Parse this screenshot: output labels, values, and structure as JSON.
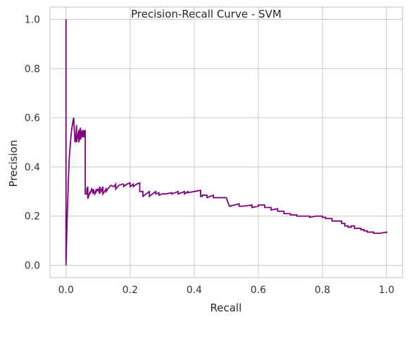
{
  "chart_data": {
    "type": "line",
    "title": "Precision-Recall Curve - SVM",
    "xlabel": "Recall",
    "ylabel": "Precision",
    "xlim": [
      -0.05,
      1.05
    ],
    "ylim": [
      -0.05,
      1.05
    ],
    "xticks": [
      "0.0",
      "0.2",
      "0.4",
      "0.6",
      "0.8",
      "1.0"
    ],
    "yticks": [
      "0.0",
      "0.2",
      "0.4",
      "0.6",
      "0.8",
      "1.0"
    ],
    "grid": true,
    "series": [
      {
        "color": "#800080",
        "x": [
          0,
          0,
          0,
          0.003,
          0.007,
          0.01,
          0.014,
          0.017,
          0.021,
          0.024,
          0.028,
          0.031,
          0.033,
          0.033,
          0.04,
          0.04,
          0.045,
          0.045,
          0.05,
          0.05,
          0.055,
          0.055,
          0.06,
          0.06,
          0.065,
          0.065,
          0.068,
          0.068,
          0.075,
          0.075,
          0.08,
          0.085,
          0.085,
          0.09,
          0.095,
          0.095,
          0.1,
          0.105,
          0.105,
          0.11,
          0.115,
          0.115,
          0.12,
          0.125,
          0.125,
          0.13,
          0.14,
          0.15,
          0.155,
          0.155,
          0.165,
          0.175,
          0.18,
          0.18,
          0.19,
          0.2,
          0.2,
          0.21,
          0.21,
          0.22,
          0.23,
          0.23,
          0.24,
          0.24,
          0.25,
          0.26,
          0.26,
          0.27,
          0.28,
          0.28,
          0.29,
          0.29,
          0.3,
          0.3,
          0.31,
          0.31,
          0.33,
          0.33,
          0.35,
          0.35,
          0.37,
          0.37,
          0.38,
          0.38,
          0.4,
          0.4,
          0.42,
          0.42,
          0.425,
          0.425,
          0.44,
          0.44,
          0.46,
          0.46,
          0.47,
          0.47,
          0.5,
          0.51,
          0.51,
          0.54,
          0.54,
          0.55,
          0.55,
          0.58,
          0.58,
          0.6,
          0.6,
          0.62,
          0.62,
          0.64,
          0.64,
          0.66,
          0.66,
          0.68,
          0.68,
          0.7,
          0.7,
          0.72,
          0.72,
          0.74,
          0.74,
          0.76,
          0.76,
          0.78,
          0.78,
          0.8,
          0.8,
          0.81,
          0.81,
          0.83,
          0.83,
          0.85,
          0.85,
          0.86,
          0.86,
          0.87,
          0.87,
          0.88,
          0.88,
          0.89,
          0.89,
          0.9,
          0.9,
          0.92,
          0.92,
          0.93,
          0.93,
          0.94,
          0.94,
          0.96,
          0.96,
          0.98,
          0.98,
          1.0,
          1.0
        ],
        "y": [
          0,
          1.0,
          0,
          0.16,
          0.33,
          0.43,
          0.5,
          0.545,
          0.58,
          0.6,
          0.5,
          0.525,
          0.57,
          0.5,
          0.55,
          0.5,
          0.56,
          0.51,
          0.55,
          0.52,
          0.55,
          0.52,
          0.55,
          0.29,
          0.29,
          0.31,
          0.32,
          0.27,
          0.3,
          0.29,
          0.31,
          0.29,
          0.31,
          0.29,
          0.31,
          0.3,
          0.31,
          0.29,
          0.32,
          0.3,
          0.32,
          0.29,
          0.3,
          0.31,
          0.3,
          0.31,
          0.325,
          0.32,
          0.33,
          0.31,
          0.325,
          0.33,
          0.33,
          0.32,
          0.33,
          0.335,
          0.32,
          0.33,
          0.32,
          0.33,
          0.335,
          0.3,
          0.3,
          0.28,
          0.29,
          0.3,
          0.28,
          0.29,
          0.3,
          0.29,
          0.295,
          0.285,
          0.29,
          0.29,
          0.29,
          0.29,
          0.295,
          0.29,
          0.3,
          0.29,
          0.3,
          0.29,
          0.3,
          0.295,
          0.3,
          0.3,
          0.305,
          0.28,
          0.28,
          0.285,
          0.285,
          0.275,
          0.285,
          0.275,
          0.275,
          0.275,
          0.275,
          0.24,
          0.24,
          0.25,
          0.24,
          0.24,
          0.24,
          0.245,
          0.235,
          0.24,
          0.245,
          0.245,
          0.235,
          0.235,
          0.225,
          0.23,
          0.22,
          0.22,
          0.21,
          0.21,
          0.205,
          0.205,
          0.2,
          0.2,
          0.2,
          0.2,
          0.195,
          0.2,
          0.2,
          0.2,
          0.195,
          0.195,
          0.19,
          0.19,
          0.18,
          0.18,
          0.18,
          0.18,
          0.17,
          0.17,
          0.16,
          0.16,
          0.155,
          0.155,
          0.16,
          0.16,
          0.15,
          0.15,
          0.145,
          0.145,
          0.14,
          0.14,
          0.135,
          0.135,
          0.13,
          0.13,
          0.13,
          0.135,
          0.13
        ]
      }
    ]
  }
}
